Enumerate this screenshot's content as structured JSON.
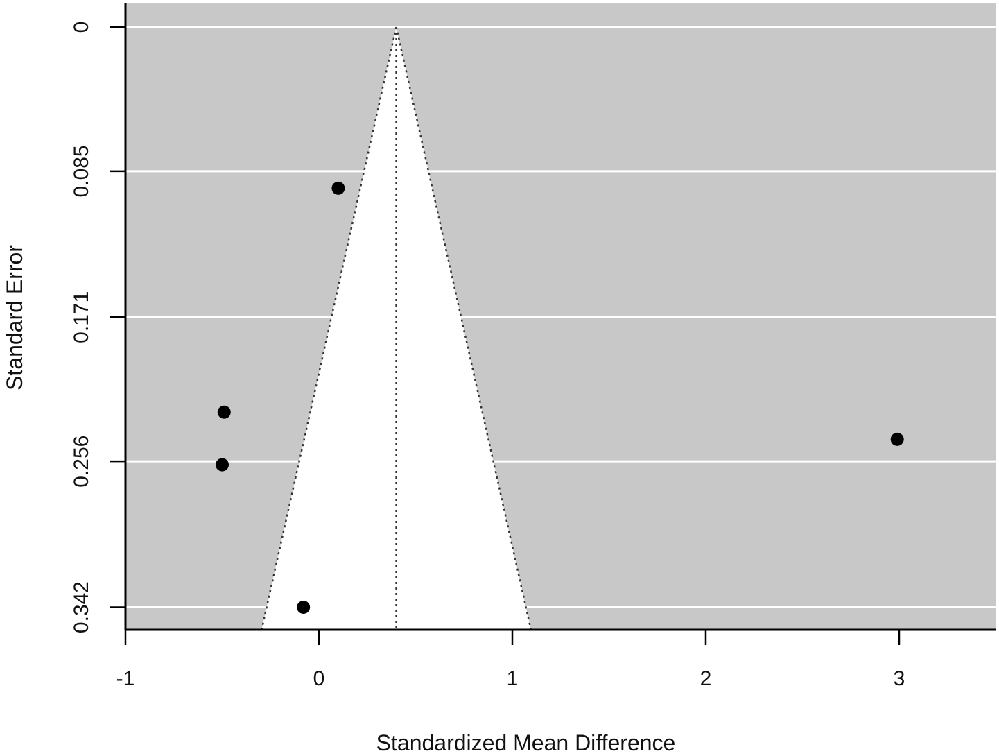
{
  "chart_data": {
    "type": "scatter",
    "subtype": "funnel",
    "xlabel": "Standardized Mean Difference",
    "ylabel": "Standard Error",
    "xlim": [
      -1,
      3.5
    ],
    "ylim": [
      0,
      0.355
    ],
    "y_reversed": true,
    "x_ticks": [
      "-1",
      "0",
      "1",
      "2",
      "3"
    ],
    "y_ticks": [
      "0",
      "0.085",
      "0.171",
      "0.256",
      "0.342"
    ],
    "grid": "horizontal",
    "center_estimate": 0.4,
    "funnel_z": 1.96,
    "points": [
      {
        "x": 0.1,
        "y": 0.095
      },
      {
        "x": -0.49,
        "y": 0.227
      },
      {
        "x": -0.5,
        "y": 0.258
      },
      {
        "x": -0.08,
        "y": 0.342
      },
      {
        "x": 2.99,
        "y": 0.243
      }
    ],
    "colors": {
      "background": "#c8c8c8",
      "funnel": "#ffffff",
      "grid": "#ffffff",
      "points": "#000000"
    }
  }
}
